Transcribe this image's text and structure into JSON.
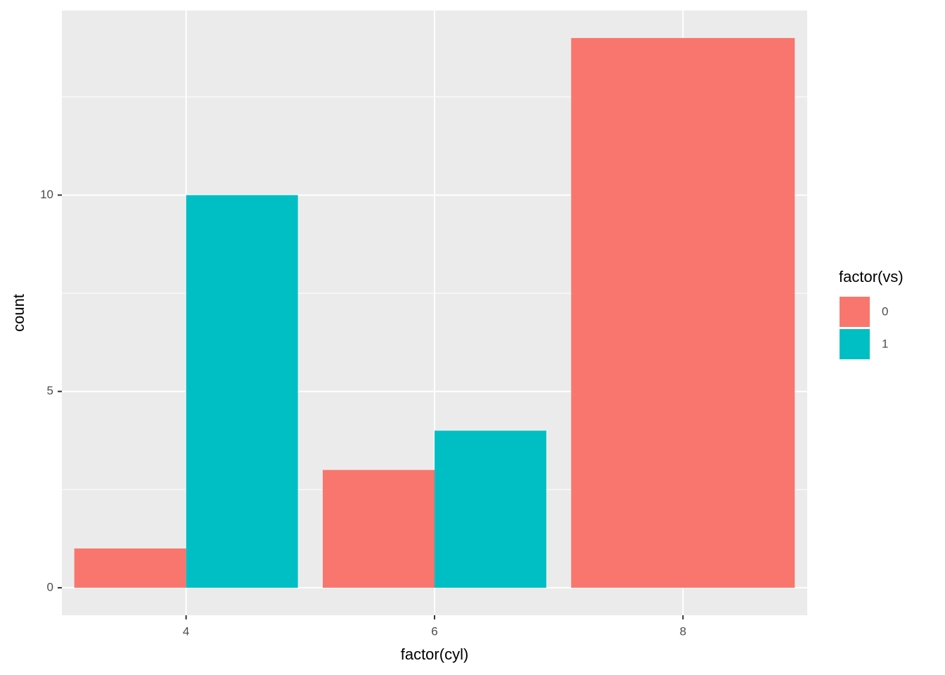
{
  "chart_data": {
    "type": "bar",
    "x_label": "factor(cyl)",
    "y_label": "count",
    "categories": [
      "4",
      "6",
      "8"
    ],
    "legend_title": "factor(vs)",
    "series": [
      {
        "name": "0",
        "color": "#F8766D",
        "values": [
          1,
          3,
          14
        ]
      },
      {
        "name": "1",
        "color": "#00BFC4",
        "values": [
          10,
          4,
          null
        ]
      }
    ],
    "ylim": [
      -0.7,
      14.7
    ],
    "yticks": [
      0,
      5,
      10
    ],
    "grid": true,
    "legend": "right"
  }
}
